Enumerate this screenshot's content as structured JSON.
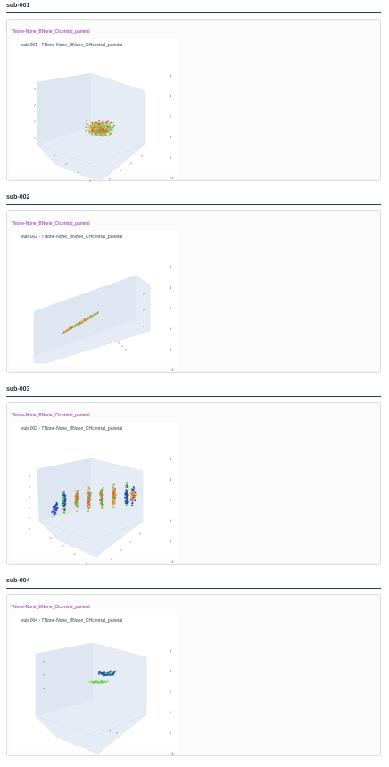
{
  "sections": [
    {
      "heading": "sub-001",
      "card_title": "TNone-None_BNone_CIcentral_parietal",
      "plot_title": "sub-001 - TNone-None_BNone_CHcentral_parietal",
      "z_ticks": [
        "4",
        "3",
        "2",
        "1",
        "0",
        "−1"
      ],
      "scene": "cloud"
    },
    {
      "heading": "sub-002",
      "card_title": "TNone-None_BNone_CIcentral_parietal",
      "plot_title": "sub-002 - TNone-None_BNone_CHcentral_parietal",
      "z_ticks": [
        "4",
        "3",
        "2",
        "1",
        "0",
        "−1"
      ],
      "scene": "line"
    },
    {
      "heading": "sub-003",
      "card_title": "TNone-None_BNone_CIcentral_parietal",
      "plot_title": "sub-003 - TNone-None_BNone_CHcentral_parietal",
      "z_ticks": [
        "4",
        "3",
        "2",
        "1",
        "0",
        "−1"
      ],
      "scene": "stripes"
    },
    {
      "heading": "sub-004",
      "card_title": "TNone-None_BNone_CIcentral_parietal",
      "plot_title": "sub-004 - TNone-None_BNone_CHcentral_parietal",
      "z_ticks": [
        "4",
        "3",
        "2",
        "1",
        "0",
        "−1"
      ],
      "scene": "flat"
    }
  ],
  "colors": {
    "red": "#e4573d",
    "green": "#5ec54e",
    "orange": "#f0a03a",
    "blue": "#2346c2",
    "lightgreen": "#8fe07a",
    "pane": "#e5ecf6",
    "rule": "#2f3d48",
    "title_purple": "#8a2b9c"
  }
}
